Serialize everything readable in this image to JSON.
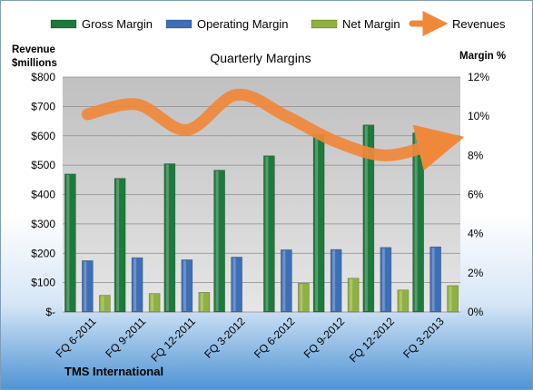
{
  "chart_data": {
    "type": "bar",
    "title": "Quarterly Margins",
    "source_label": "TMS International",
    "categories": [
      "FQ 6-2011",
      "FQ 9-2011",
      "FQ 12-2011",
      "FQ 3-2012",
      "FQ 6-2012",
      "FQ 9-2012",
      "FQ 12-2012",
      "FQ 3-2013"
    ],
    "series": [
      {
        "name": "Gross Margin",
        "axis": "left",
        "kind": "bar",
        "color": "#1e7a3c",
        "values": [
          470,
          455,
          505,
          483,
          532,
          605,
          637,
          610
        ]
      },
      {
        "name": "Operating Margin",
        "axis": "left",
        "kind": "bar",
        "color": "#3d6fb6",
        "values": [
          175,
          185,
          178,
          187,
          212,
          213,
          220,
          222
        ]
      },
      {
        "name": "Net Margin",
        "axis": "left",
        "kind": "bar",
        "color": "#8fb140",
        "values": [
          57,
          63,
          67,
          0,
          98,
          115,
          75,
          90
        ]
      },
      {
        "name": "Revenues",
        "axis": "right",
        "kind": "line",
        "color": "#f0883a",
        "values": [
          10.1,
          10.6,
          9.3,
          11.1,
          10.0,
          8.7,
          8.0,
          8.6
        ]
      }
    ],
    "left_axis": {
      "label_line1": "Revenue",
      "label_line2": "$millions",
      "ylim": [
        0,
        800
      ],
      "ticks": [
        "$-",
        "$100",
        "$200",
        "$300",
        "$400",
        "$500",
        "$600",
        "$700",
        "$800"
      ]
    },
    "right_axis": {
      "label": "Margin %",
      "ylim": [
        0,
        12
      ],
      "ticks": [
        "0%",
        "2%",
        "4%",
        "6%",
        "8%",
        "10%",
        "12%"
      ]
    },
    "grid": true,
    "legend_position": "top"
  }
}
